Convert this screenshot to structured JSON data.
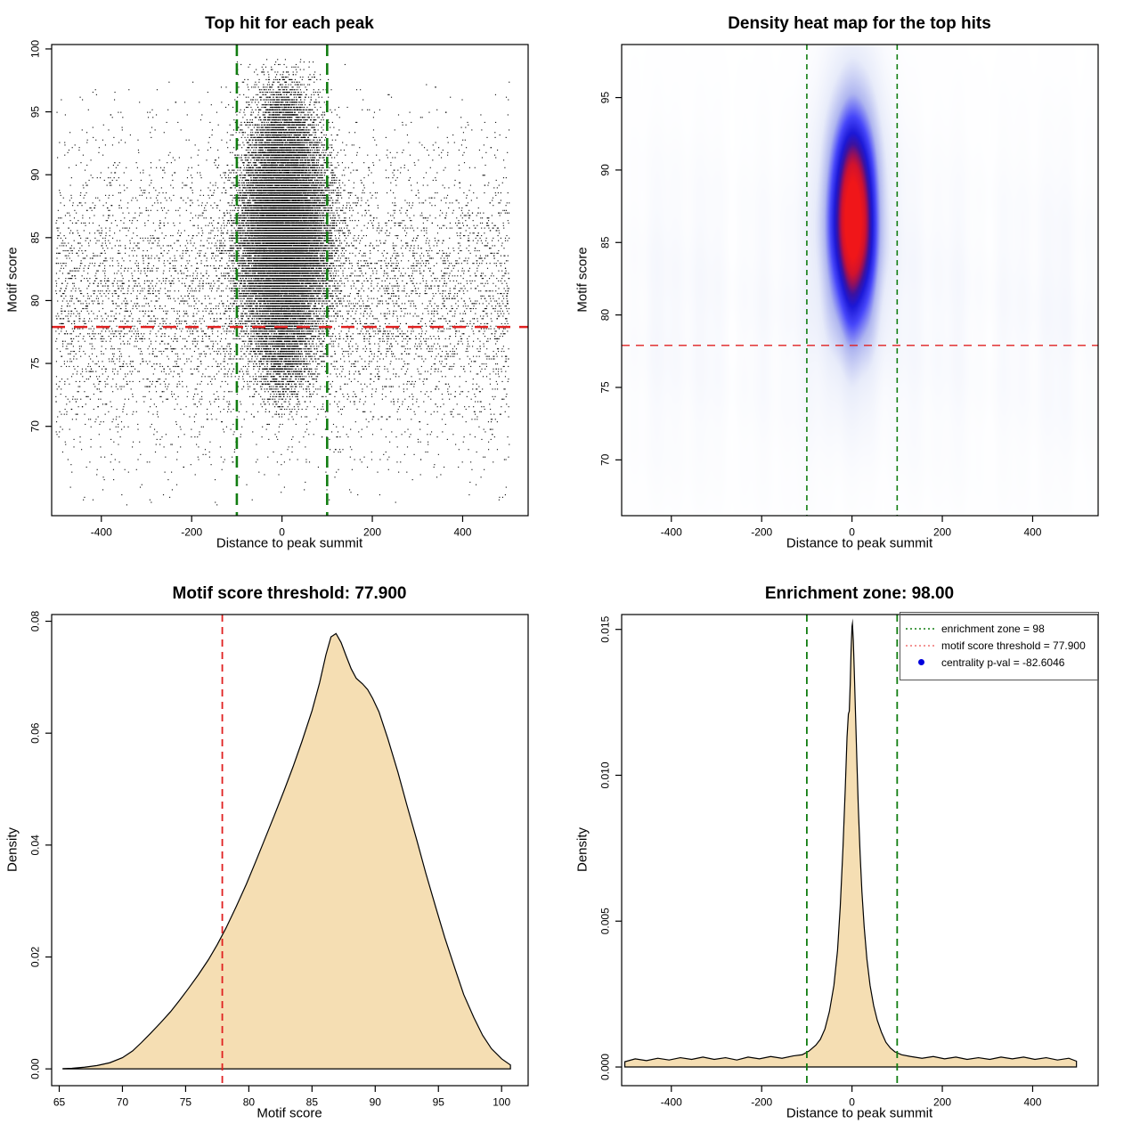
{
  "figure": {
    "background": "#ffffff"
  },
  "colors": {
    "red_dashed": "#e02020",
    "green_dashed": "#117d11",
    "legend_red": "#f07070",
    "legend_blue": "#0000dd",
    "fill_wheat": "#f5deb3",
    "curve_stroke": "#000000",
    "point_black": "#000000",
    "heat_core_red": "#f01616",
    "heat_blue": "#4646fa"
  },
  "chart_data": [
    {
      "id": "panel-1",
      "type": "scatter",
      "title": "Top hit for each peak",
      "xlabel": "Distance to peak summit",
      "ylabel": "Motif score",
      "xlim": [
        -510,
        545
      ],
      "ylim": [
        62.9,
        100.35
      ],
      "xticks": {
        "values": [
          -400,
          -200,
          0,
          200,
          400
        ],
        "labels": [
          "-400",
          "-200",
          "0",
          "200",
          "400"
        ]
      },
      "yticks": {
        "values": [
          70,
          75,
          80,
          85,
          90,
          95,
          100
        ],
        "labels": [
          "70",
          "75",
          "80",
          "85",
          "90",
          "95",
          "100"
        ]
      },
      "vlines": [
        {
          "x": -100,
          "color": "green_dashed",
          "width": 2.6,
          "dash": [
            13,
            8
          ]
        },
        {
          "x": 100,
          "color": "green_dashed",
          "width": 2.6,
          "dash": [
            13,
            8
          ]
        }
      ],
      "hlines": [
        {
          "y": 77.9,
          "color": "red_dashed",
          "width": 2.6,
          "dash": [
            15,
            10
          ]
        }
      ],
      "scatter": {
        "seed": 42,
        "point_size": 1.15,
        "components": [
          {
            "n": 23000,
            "x": {
              "dist": "normal",
              "mean": 3,
              "sd": 48
            },
            "y": {
              "dist": "normal",
              "mean": 85.4,
              "sd": 4.3
            },
            "yclip": [
              70.5,
              99.2
            ],
            "quant": 0.2
          },
          {
            "n": 1700,
            "x": {
              "dist": "normal",
              "mean": 2,
              "sd": 33
            },
            "y": {
              "dist": "normal",
              "mean": 93.5,
              "sd": 2.4
            },
            "yclip": [
              88,
              99.3
            ],
            "quant": 0.2
          },
          {
            "n": 1500,
            "x": {
              "dist": "normal",
              "mean": 0,
              "sd": 29
            },
            "y": {
              "dist": "normal",
              "mean": 76.2,
              "sd": 2.3
            },
            "yclip": [
              70.2,
              80.5
            ],
            "quant": 0.2
          },
          {
            "n": 6500,
            "x": {
              "dist": "uniform",
              "min": -502,
              "max": 502
            },
            "y": {
              "dist": "normal",
              "mean": 80.2,
              "sd": 5.6
            },
            "yclip": [
              66.3,
              97.6
            ],
            "quant": 0.2
          },
          {
            "n": 750,
            "x": {
              "dist": "uniform",
              "min": -502,
              "max": 502
            },
            "y": {
              "dist": "uniform",
              "min": 63.8,
              "max": 97.5
            },
            "quant": 0.2
          }
        ]
      }
    },
    {
      "id": "panel-2",
      "type": "heatmap",
      "title": "Density heat map for the top hits",
      "xlabel": "Distance to peak summit",
      "ylabel": "Motif score",
      "xlim": [
        -510,
        545
      ],
      "ylim": [
        66.15,
        98.66
      ],
      "xticks": {
        "values": [
          -400,
          -200,
          0,
          200,
          400
        ],
        "labels": [
          "-400",
          "-200",
          "0",
          "200",
          "400"
        ]
      },
      "yticks": {
        "values": [
          70,
          75,
          80,
          85,
          90,
          95
        ],
        "labels": [
          "70",
          "75",
          "80",
          "85",
          "90",
          "95"
        ]
      },
      "vlines": [
        {
          "x": -100,
          "color": "green_dashed",
          "width": 1.6,
          "dash": [
            6,
            5
          ]
        },
        {
          "x": 100,
          "color": "green_dashed",
          "width": 1.6,
          "dash": [
            6,
            5
          ]
        }
      ],
      "hlines": [
        {
          "y": 77.9,
          "color": "red_dashed",
          "width": 1.4,
          "dash": [
            9,
            7
          ]
        }
      ],
      "heat": {
        "blob": {
          "cx": 2,
          "sx": 44,
          "cy": 86.8,
          "sy": 6.2,
          "amp": 1.04
        },
        "haze": {
          "amp": 0.115,
          "cy": 80.5,
          "sy": 8.5
        },
        "colormap": [
          [
            0.0,
            255,
            255,
            255
          ],
          [
            0.22,
            232,
            236,
            250
          ],
          [
            0.42,
            175,
            182,
            240
          ],
          [
            0.58,
            70,
            70,
            250
          ],
          [
            0.7,
            28,
            24,
            215
          ],
          [
            0.78,
            60,
            18,
            160
          ],
          [
            0.85,
            150,
            16,
            90
          ],
          [
            0.91,
            210,
            18,
            45
          ],
          [
            1.0,
            240,
            22,
            25
          ]
        ]
      }
    },
    {
      "id": "panel-3",
      "type": "density",
      "title": "Motif score threshold: 77.900",
      "xlabel": "Motif score",
      "ylabel": "Density",
      "xlim": [
        64.4,
        102.1
      ],
      "ylim": [
        -0.003,
        0.0812
      ],
      "xticks": {
        "values": [
          65,
          70,
          75,
          80,
          85,
          90,
          95,
          100
        ],
        "labels": [
          "65",
          "70",
          "75",
          "80",
          "85",
          "90",
          "95",
          "100"
        ]
      },
      "yticks": {
        "values": [
          0.0,
          0.02,
          0.04,
          0.06,
          0.08
        ],
        "labels": [
          "0.00",
          "0.02",
          "0.04",
          "0.06",
          "0.08"
        ]
      },
      "vlines": [
        {
          "x": 77.9,
          "color": "red_dashed",
          "width": 1.8,
          "dash": [
            8,
            6
          ]
        }
      ],
      "hlines": [],
      "density": {
        "fill": "fill_wheat",
        "points": [
          [
            65.3,
            5e-05
          ],
          [
            66,
            0.0001
          ],
          [
            67,
            0.0003
          ],
          [
            68,
            0.0006
          ],
          [
            69,
            0.0011
          ],
          [
            70,
            0.002
          ],
          [
            70.8,
            0.0032
          ],
          [
            71.5,
            0.0047
          ],
          [
            72.2,
            0.0063
          ],
          [
            73,
            0.0082
          ],
          [
            73.8,
            0.0102
          ],
          [
            74.5,
            0.0122
          ],
          [
            75.2,
            0.0143
          ],
          [
            76,
            0.0168
          ],
          [
            76.8,
            0.0195
          ],
          [
            77.5,
            0.0222
          ],
          [
            78.2,
            0.0252
          ],
          [
            79,
            0.029
          ],
          [
            79.8,
            0.033
          ],
          [
            80.5,
            0.0368
          ],
          [
            81.2,
            0.0407
          ],
          [
            82,
            0.0452
          ],
          [
            82.8,
            0.0498
          ],
          [
            83.5,
            0.054
          ],
          [
            84.2,
            0.0585
          ],
          [
            85,
            0.064
          ],
          [
            85.6,
            0.069
          ],
          [
            86.1,
            0.074
          ],
          [
            86.5,
            0.0772
          ],
          [
            86.9,
            0.0778
          ],
          [
            87.3,
            0.0762
          ],
          [
            87.7,
            0.0738
          ],
          [
            88.1,
            0.0715
          ],
          [
            88.5,
            0.0698
          ],
          [
            89,
            0.0688
          ],
          [
            89.4,
            0.0678
          ],
          [
            89.8,
            0.0662
          ],
          [
            90.3,
            0.0638
          ],
          [
            91,
            0.059
          ],
          [
            91.8,
            0.053
          ],
          [
            92.5,
            0.0472
          ],
          [
            93.3,
            0.0408
          ],
          [
            94,
            0.035
          ],
          [
            94.8,
            0.0288
          ],
          [
            95.5,
            0.0235
          ],
          [
            96.3,
            0.018
          ],
          [
            97,
            0.0133
          ],
          [
            97.8,
            0.0092
          ],
          [
            98.5,
            0.006
          ],
          [
            99.2,
            0.0036
          ],
          [
            100,
            0.0018
          ],
          [
            100.7,
            0.0007
          ]
        ]
      }
    },
    {
      "id": "panel-4",
      "type": "density",
      "title": "Enrichment zone: 98.00",
      "xlabel": "Distance to peak summit",
      "ylabel": "Density",
      "xlim": [
        -510,
        545
      ],
      "ylim": [
        -0.00064,
        0.01551
      ],
      "xticks": {
        "values": [
          -400,
          -200,
          0,
          200,
          400
        ],
        "labels": [
          "-400",
          "-200",
          "0",
          "200",
          "400"
        ]
      },
      "yticks": {
        "values": [
          0.0,
          0.005,
          0.01,
          0.015
        ],
        "labels": [
          "0.000",
          "0.005",
          "0.010",
          "0.015"
        ]
      },
      "vlines": [
        {
          "x": -100,
          "color": "green_dashed",
          "width": 1.8,
          "dash": [
            8,
            6
          ]
        },
        {
          "x": 100,
          "color": "green_dashed",
          "width": 1.8,
          "dash": [
            8,
            6
          ]
        }
      ],
      "hlines": [],
      "density": {
        "fill": "fill_wheat",
        "points": [
          [
            -503,
            0.00018
          ],
          [
            -480,
            0.00028
          ],
          [
            -455,
            0.00022
          ],
          [
            -430,
            0.0003
          ],
          [
            -405,
            0.00024
          ],
          [
            -380,
            0.00032
          ],
          [
            -355,
            0.00026
          ],
          [
            -330,
            0.00034
          ],
          [
            -305,
            0.00026
          ],
          [
            -280,
            0.00032
          ],
          [
            -255,
            0.00024
          ],
          [
            -230,
            0.00034
          ],
          [
            -205,
            0.00028
          ],
          [
            -180,
            0.00036
          ],
          [
            -155,
            0.0003
          ],
          [
            -130,
            0.00038
          ],
          [
            -110,
            0.00042
          ],
          [
            -95,
            0.00055
          ],
          [
            -80,
            0.00075
          ],
          [
            -70,
            0.00095
          ],
          [
            -60,
            0.0013
          ],
          [
            -50,
            0.0019
          ],
          [
            -40,
            0.0028
          ],
          [
            -32,
            0.004
          ],
          [
            -26,
            0.0055
          ],
          [
            -20,
            0.0075
          ],
          [
            -15,
            0.0095
          ],
          [
            -11,
            0.0113
          ],
          [
            -8,
            0.0121
          ],
          [
            -6,
            0.0122
          ],
          [
            -4,
            0.0131
          ],
          [
            -2,
            0.0143
          ],
          [
            0,
            0.0151
          ],
          [
            1,
            0.0152
          ],
          [
            3,
            0.0146
          ],
          [
            5,
            0.0136
          ],
          [
            8,
            0.012
          ],
          [
            11,
            0.0104
          ],
          [
            14,
            0.0089
          ],
          [
            18,
            0.0073
          ],
          [
            22,
            0.006
          ],
          [
            27,
            0.0048
          ],
          [
            33,
            0.0037
          ],
          [
            40,
            0.0028
          ],
          [
            48,
            0.0021
          ],
          [
            56,
            0.0016
          ],
          [
            65,
            0.0012
          ],
          [
            75,
            0.00085
          ],
          [
            85,
            0.00065
          ],
          [
            95,
            0.00052
          ],
          [
            110,
            0.00042
          ],
          [
            130,
            0.00036
          ],
          [
            155,
            0.0003
          ],
          [
            180,
            0.00036
          ],
          [
            205,
            0.00028
          ],
          [
            230,
            0.00034
          ],
          [
            255,
            0.00026
          ],
          [
            280,
            0.00032
          ],
          [
            305,
            0.00026
          ],
          [
            330,
            0.00034
          ],
          [
            355,
            0.00028
          ],
          [
            380,
            0.00034
          ],
          [
            405,
            0.00026
          ],
          [
            430,
            0.00032
          ],
          [
            455,
            0.00024
          ],
          [
            480,
            0.0003
          ],
          [
            497,
            0.0002
          ]
        ]
      },
      "legend": {
        "entries": [
          {
            "symbol": "dotted-line",
            "color": "green_dashed",
            "label": "enrichment zone = 98"
          },
          {
            "symbol": "dotted-line",
            "color": "legend_red",
            "label": "motif score threshold = 77.900"
          },
          {
            "symbol": "point",
            "color": "legend_blue",
            "label": "centrality p-val = -82.6046"
          }
        ]
      }
    }
  ]
}
